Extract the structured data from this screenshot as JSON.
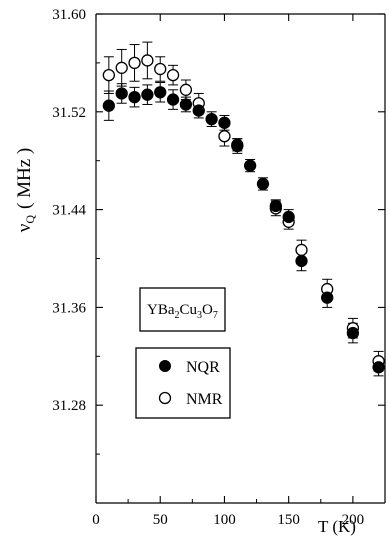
{
  "chart_data": {
    "type": "scatter",
    "xlabel": "T (K)",
    "ylabel": "ν_Q  ( MHz )",
    "ylabel_main": "ν",
    "ylabel_sub": "Q",
    "ylabel_unit": "( MHz )",
    "xlim": [
      0,
      225
    ],
    "ylim": [
      31.2,
      31.6
    ],
    "x_ticks": [
      0,
      50,
      100,
      150,
      200
    ],
    "x_tick_labels": [
      "0",
      "50",
      "100",
      "150",
      "200"
    ],
    "y_ticks": [
      31.28,
      31.36,
      31.44,
      31.52,
      31.6
    ],
    "y_tick_labels": [
      "31.28",
      "31.36",
      "31.44",
      "31.52",
      "31.60"
    ],
    "grid": false,
    "compound_label": "YBa2Cu3O7",
    "compound_label_parts": [
      "YBa",
      "2",
      "Cu",
      "3",
      "O",
      "7"
    ],
    "legend_position": "lower-left",
    "series": [
      {
        "name": "NQR",
        "marker": "filled-circle",
        "points": [
          {
            "x": 10,
            "y": 31.525,
            "err": 0.012
          },
          {
            "x": 20,
            "y": 31.535,
            "err": 0.008
          },
          {
            "x": 30,
            "y": 31.532,
            "err": 0.008
          },
          {
            "x": 40,
            "y": 31.534,
            "err": 0.008
          },
          {
            "x": 50,
            "y": 31.536,
            "err": 0.008
          },
          {
            "x": 60,
            "y": 31.53,
            "err": 0.008
          },
          {
            "x": 70,
            "y": 31.526,
            "err": 0.006
          },
          {
            "x": 80,
            "y": 31.521,
            "err": 0.006
          },
          {
            "x": 90,
            "y": 31.514,
            "err": 0.006
          },
          {
            "x": 100,
            "y": 31.511,
            "err": 0.006
          },
          {
            "x": 110,
            "y": 31.493,
            "err": 0.005
          },
          {
            "x": 120,
            "y": 31.476,
            "err": 0.005
          },
          {
            "x": 130,
            "y": 31.461,
            "err": 0.005
          },
          {
            "x": 140,
            "y": 31.443,
            "err": 0.005
          },
          {
            "x": 150,
            "y": 31.434,
            "err": 0.006
          },
          {
            "x": 160,
            "y": 31.398,
            "err": 0.008
          },
          {
            "x": 180,
            "y": 31.368,
            "err": 0.008
          },
          {
            "x": 200,
            "y": 31.339,
            "err": 0.008
          },
          {
            "x": 220,
            "y": 31.311,
            "err": 0.007
          }
        ]
      },
      {
        "name": "NMR",
        "marker": "open-circle",
        "points": [
          {
            "x": 10,
            "y": 31.55,
            "err": 0.015
          },
          {
            "x": 20,
            "y": 31.556,
            "err": 0.015
          },
          {
            "x": 30,
            "y": 31.56,
            "err": 0.015
          },
          {
            "x": 40,
            "y": 31.562,
            "err": 0.015
          },
          {
            "x": 50,
            "y": 31.555,
            "err": 0.01
          },
          {
            "x": 60,
            "y": 31.55,
            "err": 0.008
          },
          {
            "x": 70,
            "y": 31.538,
            "err": 0.008
          },
          {
            "x": 80,
            "y": 31.527,
            "err": 0.008
          },
          {
            "x": 100,
            "y": 31.5,
            "err": 0.008
          },
          {
            "x": 110,
            "y": 31.492,
            "err": 0.006
          },
          {
            "x": 140,
            "y": 31.441,
            "err": 0.006
          },
          {
            "x": 150,
            "y": 31.43,
            "err": 0.006
          },
          {
            "x": 160,
            "y": 31.407,
            "err": 0.008
          },
          {
            "x": 180,
            "y": 31.375,
            "err": 0.008
          },
          {
            "x": 200,
            "y": 31.343,
            "err": 0.008
          },
          {
            "x": 220,
            "y": 31.316,
            "err": 0.008
          }
        ]
      }
    ]
  }
}
